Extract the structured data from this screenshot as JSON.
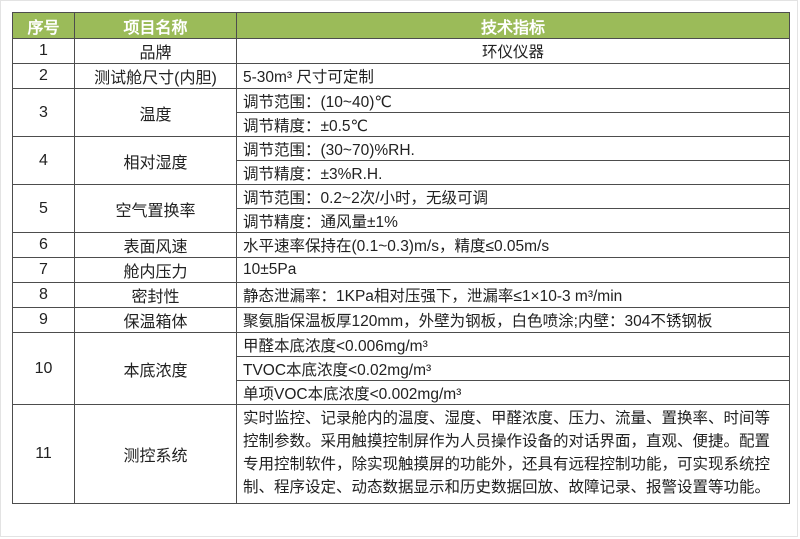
{
  "colors": {
    "header_bg": "#9BBB59",
    "header_text": "#FFFFFF",
    "border": "#4D4D4D",
    "body_text": "#212121"
  },
  "header": {
    "col_no": "序号",
    "col_item": "项目名称",
    "col_spec": "技术指标"
  },
  "rows": [
    {
      "no": "1",
      "item": "品牌",
      "specs": [
        "环仪仪器"
      ]
    },
    {
      "no": "2",
      "item": "测试舱尺寸(内胆)",
      "specs": [
        "5-30m³ 尺寸可定制"
      ]
    },
    {
      "no": "3",
      "item": "温度",
      "specs": [
        "调节范围：(10~40)℃",
        "调节精度：±0.5℃"
      ]
    },
    {
      "no": "4",
      "item": "相对湿度",
      "specs": [
        "调节范围：(30~70)%RH.",
        "调节精度：±3%R.H."
      ]
    },
    {
      "no": "5",
      "item": "空气置换率",
      "specs": [
        "调节范围：0.2~2次/小时，无级可调",
        "调节精度：通风量±1%"
      ]
    },
    {
      "no": "6",
      "item": "表面风速",
      "specs": [
        "水平速率保持在(0.1~0.3)m/s，精度≤0.05m/s"
      ]
    },
    {
      "no": "7",
      "item": "舱内压力",
      "specs": [
        "10±5Pa"
      ]
    },
    {
      "no": "8",
      "item": "密封性",
      "specs": [
        "静态泄漏率：1KPa相对压强下，泄漏率≤1×10-3 m³/min"
      ]
    },
    {
      "no": "9",
      "item": "保温箱体",
      "specs": [
        "聚氨脂保温板厚120mm，外壁为钢板，白色喷涂;内壁：304不锈钢板"
      ]
    },
    {
      "no": "10",
      "item": "本底浓度",
      "specs": [
        "甲醛本底浓度<0.006mg/m³",
        "TVOC本底浓度<0.02mg/m³",
        "单项VOC本底浓度<0.002mg/m³"
      ]
    },
    {
      "no": "11",
      "item": "测控系统",
      "specs": [
        "实时监控、记录舱内的温度、湿度、甲醛浓度、压力、流量、置换率、时间等控制参数。采用触摸控制屏作为人员操作设备的对话界面，直观、便捷。配置专用控制软件，除实现触摸屏的功能外，还具有远程控制功能，可实现系统控制、程序设定、动态数据显示和历史数据回放、故障记录、报警设置等功能。"
      ]
    }
  ]
}
